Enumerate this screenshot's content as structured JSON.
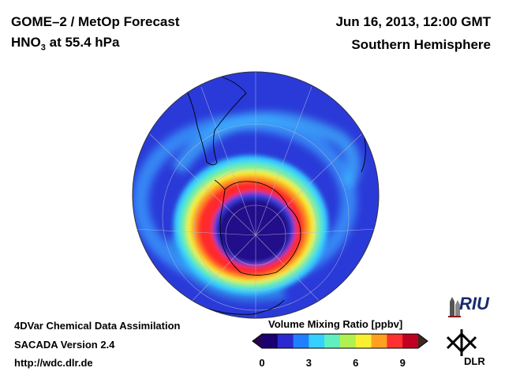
{
  "header": {
    "title_line1": "GOME–2 / MetOp Forecast",
    "species_main": "HNO",
    "species_sub": "3",
    "level_text": " at 55.4 hPa",
    "date": "Jun 16, 2013, 12:00 GMT",
    "hemisphere": "Southern Hemisphere"
  },
  "footer": {
    "line1": "4DVar Chemical Data Assimilation",
    "line2": "SACADA Version 2.4",
    "line3": "http://wdc.dlr.de"
  },
  "colorbar": {
    "title": "Volume Mixing Ratio [ppbv]",
    "min": 0,
    "max": 10,
    "ticks": [
      "0",
      "3",
      "6",
      "9"
    ],
    "tick_values": [
      0,
      3,
      6,
      9
    ],
    "colors": [
      "#1a0070",
      "#2a2ad0",
      "#1f7fff",
      "#35d0ff",
      "#60f0c0",
      "#b0f050",
      "#f8f030",
      "#ffa020",
      "#ff3030",
      "#c00020"
    ],
    "under_color": "#2a0050",
    "over_color": "#3a2a20"
  },
  "logos": {
    "riu": "RIU",
    "dlr": "DLR"
  },
  "map": {
    "projection": "orthographic",
    "center": "South Pole",
    "ocean_background_color": "#2a3ad8"
  }
}
